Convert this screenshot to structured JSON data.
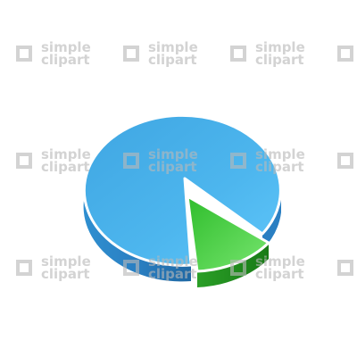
{
  "illustration": {
    "colors": {
      "blue_top": "#45aee8",
      "blue_top_light": "#5cc2f6",
      "blue_side": "#2b86c7",
      "blue_side_dark": "#1f6aa6",
      "green_top": "#39c935",
      "green_top_light": "#6ee06a",
      "green_side": "#1e8f1c",
      "outline": "#ffffff"
    }
  },
  "watermark": {
    "line1": "simple",
    "line2": "clipart",
    "color": "#b9b9b9",
    "icon": "square-outline-icon"
  }
}
